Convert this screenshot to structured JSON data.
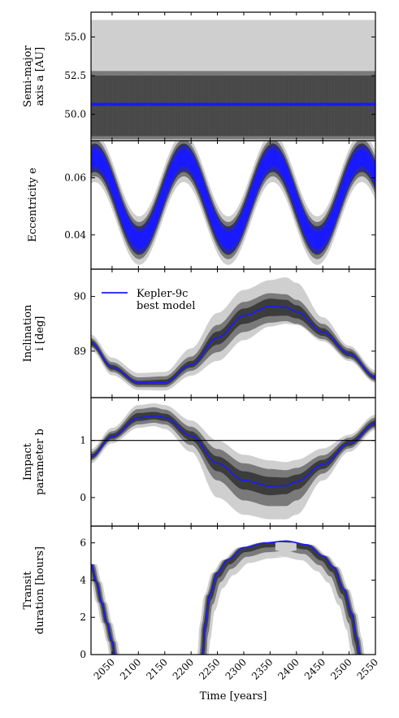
{
  "chart_data": {
    "type": "line",
    "x_label": "Time [years]",
    "x_range": [
      2010,
      2550
    ],
    "x_ticks": [
      2050,
      2100,
      2150,
      2200,
      2250,
      2300,
      2350,
      2400,
      2450,
      2500,
      2550
    ],
    "legend": {
      "label_line1": "Kepler-9c",
      "label_line2": "best model",
      "color": "#1a1aff",
      "placement": "top-left of third panel"
    },
    "colors": {
      "best_model": "#1a1aff",
      "band_1sigma": "#3c3c3c",
      "band_2sigma": "#7a7a7a",
      "band_3sigma": "#cfcfcf",
      "reference_line": "#000000"
    },
    "panels": [
      {
        "id": "semi-major",
        "ylabel_line1": "Semi-major",
        "ylabel_line2": "axis a [AU]",
        "ylim": [
          48.3,
          56.6
        ],
        "ticks": [
          50.0,
          52.5,
          55.0
        ],
        "tick_labels": [
          "50.0",
          "52.5",
          "55.0"
        ],
        "bands": [
          {
            "level": "outer",
            "lower": 48.3,
            "upper": 56.1
          },
          {
            "level": "middle",
            "lower": 48.4,
            "upper": 52.8
          },
          {
            "level": "inner",
            "lower": 48.6,
            "upper": 52.5
          }
        ],
        "best_model": {
          "mean": 50.65,
          "oscillation_amplitude": 0.1
        }
      },
      {
        "id": "eccentricity",
        "ylabel_line1": "Eccentricity e",
        "ylim": [
          0.028,
          0.073
        ],
        "ticks": [
          0.04,
          0.06
        ],
        "tick_labels": [
          "0.04",
          "0.06"
        ],
        "best_model": {
          "offset": 0.0525,
          "amplitude": 0.0145,
          "period_years": 169,
          "peak_year": 2186,
          "oscillation_amplitude": 0.003
        },
        "band_spread": {
          "inner": 0.002,
          "middle": 0.0035,
          "outer": 0.0055
        }
      },
      {
        "id": "inclination",
        "ylabel_line1": "Inclination",
        "ylabel_line2": "i [deg]",
        "ylim": [
          88.15,
          90.5
        ],
        "ticks": [
          89,
          90
        ],
        "tick_labels": [
          "89",
          "90"
        ],
        "x": [
          2010,
          2050,
          2100,
          2150,
          2200,
          2250,
          2300,
          2350,
          2380,
          2400,
          2450,
          2500,
          2550
        ],
        "best_model": [
          89.15,
          88.7,
          88.42,
          88.43,
          88.75,
          89.25,
          89.65,
          89.82,
          89.8,
          89.72,
          89.35,
          88.95,
          88.52
        ],
        "lower_1sigma": [
          89.1,
          88.66,
          88.38,
          88.38,
          88.7,
          89.12,
          89.5,
          89.64,
          89.65,
          89.6,
          89.28,
          88.9,
          88.48
        ],
        "upper_1sigma": [
          89.2,
          88.75,
          88.46,
          88.48,
          88.82,
          89.36,
          89.78,
          89.96,
          89.94,
          89.84,
          89.42,
          89.0,
          88.56
        ],
        "lower_2sigma": [
          89.07,
          88.62,
          88.34,
          88.34,
          88.64,
          88.98,
          89.35,
          89.52,
          89.55,
          89.5,
          89.22,
          88.86,
          88.45
        ],
        "upper_2sigma": [
          89.24,
          88.8,
          88.52,
          88.54,
          88.9,
          89.48,
          89.9,
          90.06,
          90.04,
          89.94,
          89.5,
          89.05,
          88.6
        ],
        "lower_3sigma": [
          89.02,
          88.56,
          88.29,
          88.28,
          88.55,
          88.82,
          89.2,
          89.45,
          89.5,
          89.48,
          89.18,
          88.82,
          88.42
        ],
        "upper_3sigma": [
          89.3,
          88.88,
          88.6,
          88.62,
          89.05,
          89.7,
          90.12,
          90.3,
          90.35,
          90.25,
          89.62,
          89.1,
          88.65
        ]
      },
      {
        "id": "impact",
        "ylabel_line1": "Impact",
        "ylabel_line2": "parameter b",
        "ylim": [
          -0.5,
          1.75
        ],
        "ticks": [
          0,
          1
        ],
        "tick_labels": [
          "0",
          "1"
        ],
        "reference_line": 1,
        "x": [
          2010,
          2050,
          2100,
          2130,
          2150,
          2200,
          2250,
          2300,
          2350,
          2380,
          2400,
          2450,
          2500,
          2550
        ],
        "best_model": [
          0.72,
          1.07,
          1.4,
          1.43,
          1.4,
          1.08,
          0.6,
          0.3,
          0.2,
          0.21,
          0.28,
          0.58,
          0.95,
          1.3
        ],
        "lower_1sigma": [
          0.68,
          1.03,
          1.34,
          1.37,
          1.34,
          1.0,
          0.46,
          0.14,
          0.04,
          0.06,
          0.14,
          0.5,
          0.9,
          1.25
        ],
        "upper_1sigma": [
          0.76,
          1.12,
          1.48,
          1.5,
          1.47,
          1.16,
          0.72,
          0.46,
          0.36,
          0.35,
          0.4,
          0.66,
          1.0,
          1.35
        ],
        "lower_2sigma": [
          0.65,
          1.0,
          1.28,
          1.31,
          1.28,
          0.92,
          0.3,
          -0.05,
          -0.15,
          -0.15,
          -0.05,
          0.42,
          0.86,
          1.22
        ],
        "upper_2sigma": [
          0.8,
          1.16,
          1.55,
          1.58,
          1.54,
          1.24,
          0.85,
          0.6,
          0.5,
          0.48,
          0.52,
          0.74,
          1.05,
          1.4
        ],
        "lower_3sigma": [
          0.6,
          0.95,
          1.22,
          1.25,
          1.2,
          0.8,
          0.0,
          -0.3,
          -0.38,
          -0.38,
          -0.3,
          0.3,
          0.8,
          1.18
        ],
        "upper_3sigma": [
          0.85,
          1.22,
          1.62,
          1.65,
          1.62,
          1.35,
          1.0,
          0.75,
          0.65,
          0.62,
          0.66,
          0.86,
          1.1,
          1.45
        ]
      },
      {
        "id": "duration",
        "ylabel_line1": "Transit",
        "ylabel_line2": "duration [hours]",
        "ylim": [
          0,
          6.9
        ],
        "ticks": [
          0,
          2,
          4,
          6
        ],
        "tick_labels": [
          "0",
          "2",
          "4",
          "6"
        ],
        "segments": [
          {
            "x": [
              2010,
              2020,
              2030,
              2040,
              2050,
              2055
            ],
            "best_model": [
              4.85,
              3.9,
              2.8,
              1.7,
              0.7,
              0.0
            ],
            "band_spread_years": {
              "inner": 3,
              "middle": 6,
              "outer": 10
            }
          },
          {
            "x": [
              2222,
              2226,
              2235,
              2250,
              2270,
              2300,
              2340,
              2380,
              2420,
              2450,
              2470,
              2490,
              2505,
              2514,
              2520
            ],
            "best_model": [
              0.0,
              1.6,
              3.2,
              4.4,
              5.1,
              5.75,
              6.0,
              6.1,
              5.9,
              5.3,
              4.7,
              3.5,
              2.2,
              0.9,
              0.0
            ],
            "band_spread_years": {
              "inner": 3,
              "middle": 6,
              "outer": 10
            },
            "dip_3sigma": {
              "x": [
                2360,
                2380,
                2400
              ],
              "lower": [
                5.6,
                5.5,
                5.6
              ]
            }
          }
        ]
      }
    ]
  }
}
